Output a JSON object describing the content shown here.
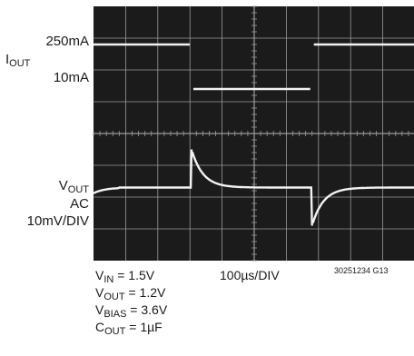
{
  "chart_data": {
    "type": "line",
    "title": "",
    "x_scale": "100µs/DIV",
    "grid": {
      "x_divisions": 10,
      "y_divisions": 8
    },
    "series": [
      {
        "name": "IOUT",
        "unit": "mA",
        "levels": {
          "high": 250,
          "low": 10
        },
        "segments": [
          {
            "x_div": [
              0,
              3.05
            ],
            "value": 250
          },
          {
            "x_div": [
              3.05,
              6.8
            ],
            "value": 10
          },
          {
            "x_div": [
              6.8,
              10
            ],
            "value": 250
          }
        ]
      },
      {
        "name": "VOUT AC",
        "unit": "10mV/DIV",
        "transients": [
          {
            "at_div": 3.05,
            "deviation_div": 1.2,
            "tau_div": 0.35,
            "direction": "up"
          },
          {
            "at_div": 6.8,
            "deviation_div": -1.2,
            "tau_div": 0.35,
            "direction": "down"
          }
        ]
      }
    ]
  },
  "labels": {
    "iout_high": "250mA",
    "iout_main": "I",
    "iout_sub": "OUT",
    "iout_low": "10mA",
    "vout_main": "V",
    "vout_sub": "OUT",
    "vout_ac": "AC",
    "vout_scale": "10mV/DIV"
  },
  "conditions": {
    "vin_main": "V",
    "vin_sub": "IN",
    "vin_val": " = 1.5V",
    "vout_main": "V",
    "vout_sub": "OUT",
    "vout_val": " = 1.2V",
    "vbias_main": "V",
    "vbias_sub": "BIAS",
    "vbias_val": " = 3.6V",
    "cout_main": "C",
    "cout_sub": "OUT",
    "cout_val": " = 1µF"
  },
  "time_scale": "100µs/DIV",
  "figure_id": "30251234 G13",
  "colors": {
    "screen": "#1b1b1b",
    "grid": "#9a9a9a",
    "trace": "#f2f2f2"
  }
}
